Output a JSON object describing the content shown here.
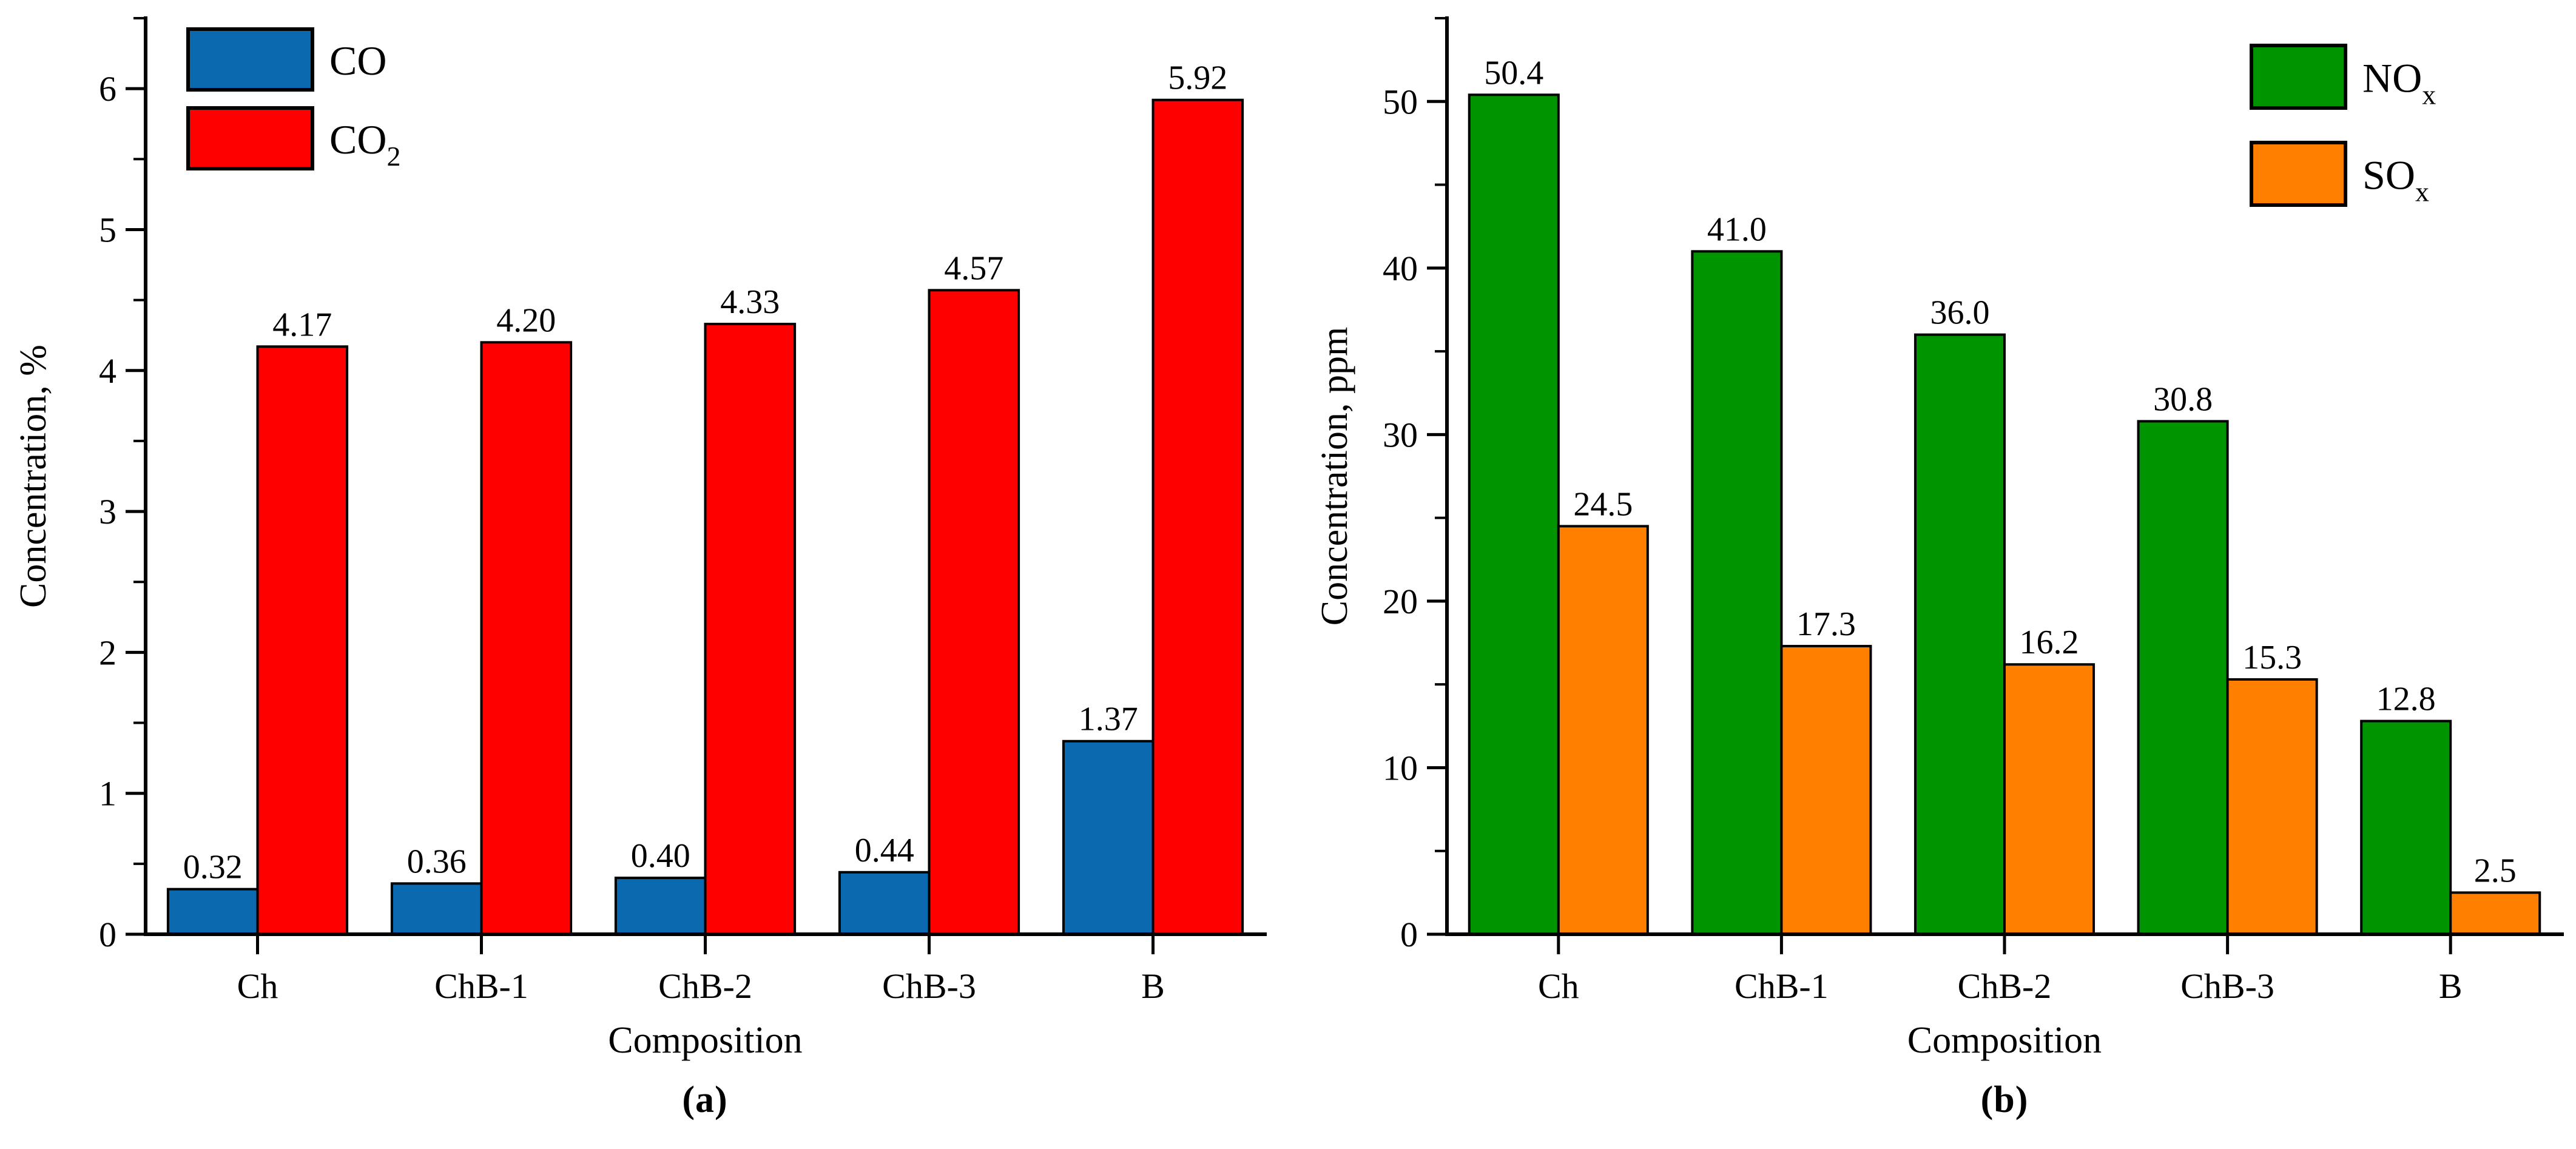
{
  "figure": {
    "captions": [
      "(a)",
      "(b)"
    ]
  },
  "chart_data": [
    {
      "type": "bar",
      "panel": "a",
      "title": "",
      "xlabel": "Composition",
      "ylabel": "Concentration, %",
      "categories": [
        "Ch",
        "ChB-1",
        "ChB-2",
        "ChB-3",
        "B"
      ],
      "series": [
        {
          "name": "CO",
          "sub": "",
          "color": "#0B69B0",
          "values": [
            0.32,
            0.36,
            0.4,
            0.44,
            1.37
          ],
          "labels": [
            "0.32",
            "0.36",
            "0.40",
            "0.44",
            "1.37"
          ]
        },
        {
          "name": "CO",
          "sub": "2",
          "color": "#FF0000",
          "values": [
            4.17,
            4.2,
            4.33,
            4.57,
            5.92
          ],
          "labels": [
            "4.17",
            "4.20",
            "4.33",
            "4.57",
            "5.92"
          ]
        }
      ],
      "ylim": [
        0,
        6.5
      ],
      "yticks": [
        {
          "v": 0,
          "label": "0"
        },
        {
          "v": 1,
          "label": "1"
        },
        {
          "v": 2,
          "label": "2"
        },
        {
          "v": 3,
          "label": "3"
        },
        {
          "v": 4,
          "label": "4"
        },
        {
          "v": 5,
          "label": "5"
        },
        {
          "v": 6,
          "label": "6"
        }
      ],
      "minor_step": 0.5,
      "grid": false,
      "legend_position": "top-left"
    },
    {
      "type": "bar",
      "panel": "b",
      "title": "",
      "xlabel": "Composition",
      "ylabel": "Concentration, ppm",
      "categories": [
        "Ch",
        "ChB-1",
        "ChB-2",
        "ChB-3",
        "B"
      ],
      "series": [
        {
          "name": "NO",
          "sub": "x",
          "color": "#009400",
          "values": [
            50.4,
            41.0,
            36.0,
            30.8,
            12.8
          ],
          "labels": [
            "50.4",
            "41.0",
            "36.0",
            "30.8",
            "12.8"
          ]
        },
        {
          "name": "SO",
          "sub": "x",
          "color": "#FF8000",
          "values": [
            24.5,
            17.3,
            16.2,
            15.3,
            2.5
          ],
          "labels": [
            "24.5",
            "17.3",
            "16.2",
            "15.3",
            "2.5"
          ]
        }
      ],
      "ylim": [
        0,
        55
      ],
      "yticks": [
        {
          "v": 0,
          "label": "0"
        },
        {
          "v": 10,
          "label": "10"
        },
        {
          "v": 20,
          "label": "20"
        },
        {
          "v": 30,
          "label": "30"
        },
        {
          "v": 40,
          "label": "40"
        },
        {
          "v": 50,
          "label": "50"
        }
      ],
      "minor_step": 5,
      "grid": false,
      "legend_position": "top-right"
    }
  ],
  "colors": {
    "axis": "#000000",
    "co_blue": "#0B69B0",
    "co2_red": "#FF0000",
    "nox_green": "#009400",
    "sox_orange": "#FF8000"
  }
}
